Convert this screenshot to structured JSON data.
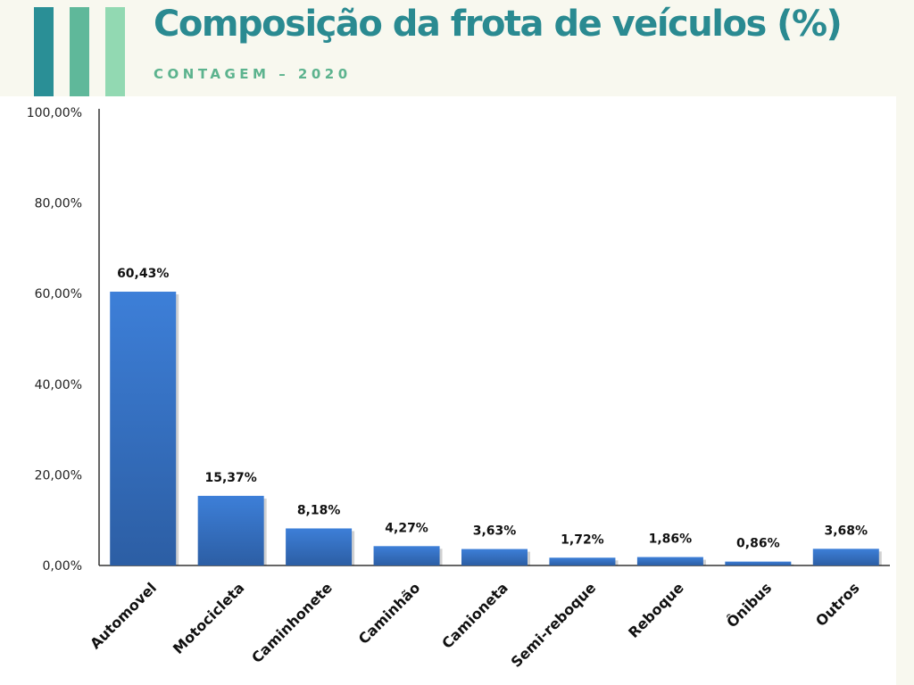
{
  "header": {
    "title": "Composição da frota de veículos (%)",
    "subtitle": "CONTAGEM – 2020",
    "stripe_colors": [
      "#2a8f96",
      "#5fb89a",
      "#92d9b2"
    ],
    "title_color": "#2a8a91",
    "subtitle_color": "#5cb38e"
  },
  "colors": {
    "bar_top": "#3d7fd8",
    "bar_bottom": "#2c5ea4",
    "axis": "#333333"
  },
  "chart_data": {
    "type": "bar",
    "title": "",
    "xlabel": "",
    "ylabel": "",
    "categories": [
      "Automovel",
      "Motocicleta",
      "Caminhonete",
      "Caminhão",
      "Camioneta",
      "Semi-reboque",
      "Reboque",
      "Ônibus",
      "Outros"
    ],
    "values": [
      60.43,
      15.37,
      8.18,
      4.27,
      3.63,
      1.72,
      1.86,
      0.86,
      3.68
    ],
    "data_labels": [
      "60,43%",
      "15,37%",
      "8,18%",
      "4,27%",
      "3,63%",
      "1,72%",
      "1,86%",
      "0,86%",
      "3,68%"
    ],
    "ylim": [
      0,
      100
    ],
    "yticks": [
      0,
      20,
      40,
      60,
      80,
      100
    ],
    "ytick_labels": [
      "0,00%",
      "20,00%",
      "40,00%",
      "60,00%",
      "80,00%",
      "100,00%"
    ],
    "grid": false,
    "legend": "none"
  }
}
